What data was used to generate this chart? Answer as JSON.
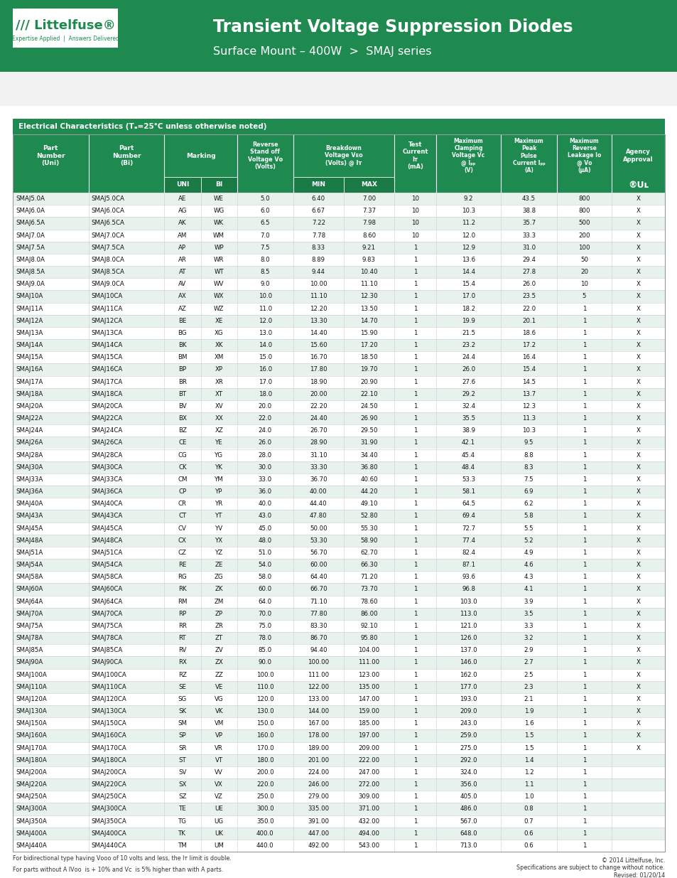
{
  "title": "Transient Voltage Suppression Diodes",
  "subtitle": "Surface Mount – 400W  >  SMAJ series",
  "header_bg": "#1e8a50",
  "table_header_bg": "#1e8a50",
  "alt_row_bg": "#e8f2ec",
  "white_row_bg": "#ffffff",
  "rows": [
    [
      "SMAJ5.0A",
      "SMAJ5.0CA",
      "AE",
      "WE",
      "5.0",
      "6.40",
      "7.00",
      "10",
      "9.2",
      "43.5",
      "800",
      "X"
    ],
    [
      "SMAJ6.0A",
      "SMAJ6.0CA",
      "AG",
      "WG",
      "6.0",
      "6.67",
      "7.37",
      "10",
      "10.3",
      "38.8",
      "800",
      "X"
    ],
    [
      "SMAJ6.5A",
      "SMAJ6.5CA",
      "AK",
      "WK",
      "6.5",
      "7.22",
      "7.98",
      "10",
      "11.2",
      "35.7",
      "500",
      "X"
    ],
    [
      "SMAJ7.0A",
      "SMAJ7.0CA",
      "AM",
      "WM",
      "7.0",
      "7.78",
      "8.60",
      "10",
      "12.0",
      "33.3",
      "200",
      "X"
    ],
    [
      "SMAJ7.5A",
      "SMAJ7.5CA",
      "AP",
      "WP",
      "7.5",
      "8.33",
      "9.21",
      "1",
      "12.9",
      "31.0",
      "100",
      "X"
    ],
    [
      "SMAJ8.0A",
      "SMAJ8.0CA",
      "AR",
      "WR",
      "8.0",
      "8.89",
      "9.83",
      "1",
      "13.6",
      "29.4",
      "50",
      "X"
    ],
    [
      "SMAJ8.5A",
      "SMAJ8.5CA",
      "AT",
      "WT",
      "8.5",
      "9.44",
      "10.40",
      "1",
      "14.4",
      "27.8",
      "20",
      "X"
    ],
    [
      "SMAJ9.0A",
      "SMAJ9.0CA",
      "AV",
      "WV",
      "9.0",
      "10.00",
      "11.10",
      "1",
      "15.4",
      "26.0",
      "10",
      "X"
    ],
    [
      "SMAJ10A",
      "SMAJ10CA",
      "AX",
      "WX",
      "10.0",
      "11.10",
      "12.30",
      "1",
      "17.0",
      "23.5",
      "5",
      "X"
    ],
    [
      "SMAJ11A",
      "SMAJ11CA",
      "AZ",
      "WZ",
      "11.0",
      "12.20",
      "13.50",
      "1",
      "18.2",
      "22.0",
      "1",
      "X"
    ],
    [
      "SMAJ12A",
      "SMAJ12CA",
      "BE",
      "XE",
      "12.0",
      "13.30",
      "14.70",
      "1",
      "19.9",
      "20.1",
      "1",
      "X"
    ],
    [
      "SMAJ13A",
      "SMAJ13CA",
      "BG",
      "XG",
      "13.0",
      "14.40",
      "15.90",
      "1",
      "21.5",
      "18.6",
      "1",
      "X"
    ],
    [
      "SMAJ14A",
      "SMAJ14CA",
      "BK",
      "XK",
      "14.0",
      "15.60",
      "17.20",
      "1",
      "23.2",
      "17.2",
      "1",
      "X"
    ],
    [
      "SMAJ15A",
      "SMAJ15CA",
      "BM",
      "XM",
      "15.0",
      "16.70",
      "18.50",
      "1",
      "24.4",
      "16.4",
      "1",
      "X"
    ],
    [
      "SMAJ16A",
      "SMAJ16CA",
      "BP",
      "XP",
      "16.0",
      "17.80",
      "19.70",
      "1",
      "26.0",
      "15.4",
      "1",
      "X"
    ],
    [
      "SMAJ17A",
      "SMAJ17CA",
      "BR",
      "XR",
      "17.0",
      "18.90",
      "20.90",
      "1",
      "27.6",
      "14.5",
      "1",
      "X"
    ],
    [
      "SMAJ18A",
      "SMAJ18CA",
      "BT",
      "XT",
      "18.0",
      "20.00",
      "22.10",
      "1",
      "29.2",
      "13.7",
      "1",
      "X"
    ],
    [
      "SMAJ20A",
      "SMAJ20CA",
      "BV",
      "XV",
      "20.0",
      "22.20",
      "24.50",
      "1",
      "32.4",
      "12.3",
      "1",
      "X"
    ],
    [
      "SMAJ22A",
      "SMAJ22CA",
      "BX",
      "XX",
      "22.0",
      "24.40",
      "26.90",
      "1",
      "35.5",
      "11.3",
      "1",
      "X"
    ],
    [
      "SMAJ24A",
      "SMAJ24CA",
      "BZ",
      "XZ",
      "24.0",
      "26.70",
      "29.50",
      "1",
      "38.9",
      "10.3",
      "1",
      "X"
    ],
    [
      "SMAJ26A",
      "SMAJ26CA",
      "CE",
      "YE",
      "26.0",
      "28.90",
      "31.90",
      "1",
      "42.1",
      "9.5",
      "1",
      "X"
    ],
    [
      "SMAJ28A",
      "SMAJ28CA",
      "CG",
      "YG",
      "28.0",
      "31.10",
      "34.40",
      "1",
      "45.4",
      "8.8",
      "1",
      "X"
    ],
    [
      "SMAJ30A",
      "SMAJ30CA",
      "CK",
      "YK",
      "30.0",
      "33.30",
      "36.80",
      "1",
      "48.4",
      "8.3",
      "1",
      "X"
    ],
    [
      "SMAJ33A",
      "SMAJ33CA",
      "CM",
      "YM",
      "33.0",
      "36.70",
      "40.60",
      "1",
      "53.3",
      "7.5",
      "1",
      "X"
    ],
    [
      "SMAJ36A",
      "SMAJ36CA",
      "CP",
      "YP",
      "36.0",
      "40.00",
      "44.20",
      "1",
      "58.1",
      "6.9",
      "1",
      "X"
    ],
    [
      "SMAJ40A",
      "SMAJ40CA",
      "CR",
      "YR",
      "40.0",
      "44.40",
      "49.10",
      "1",
      "64.5",
      "6.2",
      "1",
      "X"
    ],
    [
      "SMAJ43A",
      "SMAJ43CA",
      "CT",
      "YT",
      "43.0",
      "47.80",
      "52.80",
      "1",
      "69.4",
      "5.8",
      "1",
      "X"
    ],
    [
      "SMAJ45A",
      "SMAJ45CA",
      "CV",
      "YV",
      "45.0",
      "50.00",
      "55.30",
      "1",
      "72.7",
      "5.5",
      "1",
      "X"
    ],
    [
      "SMAJ48A",
      "SMAJ48CA",
      "CX",
      "YX",
      "48.0",
      "53.30",
      "58.90",
      "1",
      "77.4",
      "5.2",
      "1",
      "X"
    ],
    [
      "SMAJ51A",
      "SMAJ51CA",
      "CZ",
      "YZ",
      "51.0",
      "56.70",
      "62.70",
      "1",
      "82.4",
      "4.9",
      "1",
      "X"
    ],
    [
      "SMAJ54A",
      "SMAJ54CA",
      "RE",
      "ZE",
      "54.0",
      "60.00",
      "66.30",
      "1",
      "87.1",
      "4.6",
      "1",
      "X"
    ],
    [
      "SMAJ58A",
      "SMAJ58CA",
      "RG",
      "ZG",
      "58.0",
      "64.40",
      "71.20",
      "1",
      "93.6",
      "4.3",
      "1",
      "X"
    ],
    [
      "SMAJ60A",
      "SMAJ60CA",
      "RK",
      "ZK",
      "60.0",
      "66.70",
      "73.70",
      "1",
      "96.8",
      "4.1",
      "1",
      "X"
    ],
    [
      "SMAJ64A",
      "SMAJ64CA",
      "RM",
      "ZM",
      "64.0",
      "71.10",
      "78.60",
      "1",
      "103.0",
      "3.9",
      "1",
      "X"
    ],
    [
      "SMAJ70A",
      "SMAJ70CA",
      "RP",
      "ZP",
      "70.0",
      "77.80",
      "86.00",
      "1",
      "113.0",
      "3.5",
      "1",
      "X"
    ],
    [
      "SMAJ75A",
      "SMAJ75CA",
      "RR",
      "ZR",
      "75.0",
      "83.30",
      "92.10",
      "1",
      "121.0",
      "3.3",
      "1",
      "X"
    ],
    [
      "SMAJ78A",
      "SMAJ78CA",
      "RT",
      "ZT",
      "78.0",
      "86.70",
      "95.80",
      "1",
      "126.0",
      "3.2",
      "1",
      "X"
    ],
    [
      "SMAJ85A",
      "SMAJ85CA",
      "RV",
      "ZV",
      "85.0",
      "94.40",
      "104.00",
      "1",
      "137.0",
      "2.9",
      "1",
      "X"
    ],
    [
      "SMAJ90A",
      "SMAJ90CA",
      "RX",
      "ZX",
      "90.0",
      "100.00",
      "111.00",
      "1",
      "146.0",
      "2.7",
      "1",
      "X"
    ],
    [
      "SMAJ100A",
      "SMAJ100CA",
      "RZ",
      "ZZ",
      "100.0",
      "111.00",
      "123.00",
      "1",
      "162.0",
      "2.5",
      "1",
      "X"
    ],
    [
      "SMAJ110A",
      "SMAJ110CA",
      "SE",
      "VE",
      "110.0",
      "122.00",
      "135.00",
      "1",
      "177.0",
      "2.3",
      "1",
      "X"
    ],
    [
      "SMAJ120A",
      "SMAJ120CA",
      "SG",
      "VG",
      "120.0",
      "133.00",
      "147.00",
      "1",
      "193.0",
      "2.1",
      "1",
      "X"
    ],
    [
      "SMAJ130A",
      "SMAJ130CA",
      "SK",
      "VK",
      "130.0",
      "144.00",
      "159.00",
      "1",
      "209.0",
      "1.9",
      "1",
      "X"
    ],
    [
      "SMAJ150A",
      "SMAJ150CA",
      "SM",
      "VM",
      "150.0",
      "167.00",
      "185.00",
      "1",
      "243.0",
      "1.6",
      "1",
      "X"
    ],
    [
      "SMAJ160A",
      "SMAJ160CA",
      "SP",
      "VP",
      "160.0",
      "178.00",
      "197.00",
      "1",
      "259.0",
      "1.5",
      "1",
      "X"
    ],
    [
      "SMAJ170A",
      "SMAJ170CA",
      "SR",
      "VR",
      "170.0",
      "189.00",
      "209.00",
      "1",
      "275.0",
      "1.5",
      "1",
      "X"
    ],
    [
      "SMAJ180A",
      "SMAJ180CA",
      "ST",
      "VT",
      "180.0",
      "201.00",
      "222.00",
      "1",
      "292.0",
      "1.4",
      "1",
      ""
    ],
    [
      "SMAJ200A",
      "SMAJ200CA",
      "SV",
      "VV",
      "200.0",
      "224.00",
      "247.00",
      "1",
      "324.0",
      "1.2",
      "1",
      ""
    ],
    [
      "SMAJ220A",
      "SMAJ220CA",
      "SX",
      "VX",
      "220.0",
      "246.00",
      "272.00",
      "1",
      "356.0",
      "1.1",
      "1",
      ""
    ],
    [
      "SMAJ250A",
      "SMAJ250CA",
      "SZ",
      "VZ",
      "250.0",
      "279.00",
      "309.00",
      "1",
      "405.0",
      "1.0",
      "1",
      ""
    ],
    [
      "SMAJ300A",
      "SMAJ300CA",
      "TE",
      "UE",
      "300.0",
      "335.00",
      "371.00",
      "1",
      "486.0",
      "0.8",
      "1",
      ""
    ],
    [
      "SMAJ350A",
      "SMAJ350CA",
      "TG",
      "UG",
      "350.0",
      "391.00",
      "432.00",
      "1",
      "567.0",
      "0.7",
      "1",
      ""
    ],
    [
      "SMAJ400A",
      "SMAJ400CA",
      "TK",
      "UK",
      "400.0",
      "447.00",
      "494.00",
      "1",
      "648.0",
      "0.6",
      "1",
      ""
    ],
    [
      "SMAJ440A",
      "SMAJ440CA",
      "TM",
      "UM",
      "440.0",
      "492.00",
      "543.00",
      "1",
      "713.0",
      "0.6",
      "1",
      ""
    ]
  ],
  "footer_note1": "For bidirectional type having VⱿⱿⱿ of 10 volts and less, the Iᴛ limit is double.",
  "footer_note2": "For parts without A IVⱿⱿ  is + 10% and VⱿ  is 5% higher than with A parts.",
  "copyright": "© 2014 Littelfuse, Inc.\nSpecifications are subject to change without notice.\nRevised: 01/20/14"
}
